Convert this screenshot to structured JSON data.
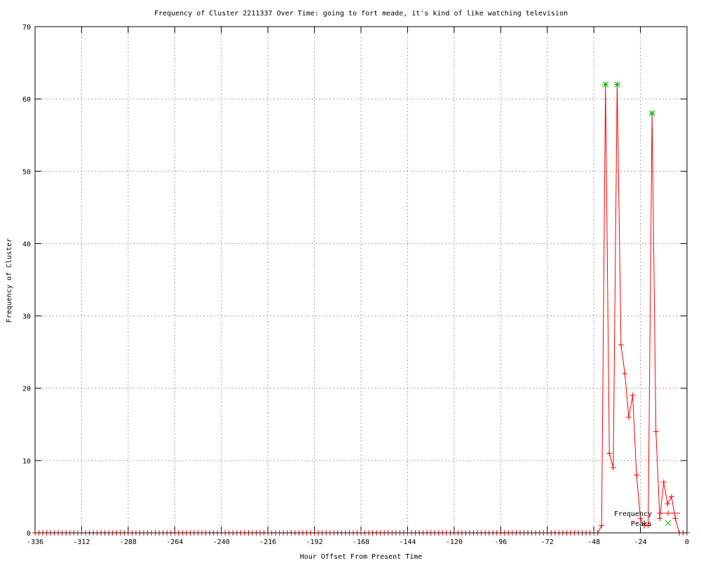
{
  "chart_data": {
    "type": "line",
    "title": "Frequency of Cluster 2211337 Over Time: going to fort meade, it's kind of like watching television",
    "xlabel": "Hour Offset From Present Time",
    "ylabel": "Frequency of Cluster",
    "xlim": [
      -336,
      0
    ],
    "ylim": [
      0,
      70
    ],
    "xticks": [
      -336,
      -312,
      -288,
      -264,
      -240,
      -216,
      -192,
      -168,
      -144,
      -120,
      -96,
      -72,
      -48,
      -24,
      0
    ],
    "yticks": [
      0,
      10,
      20,
      30,
      40,
      50,
      60,
      70
    ],
    "grid": true,
    "legend_placement": "bottom-right",
    "series": [
      {
        "name": "Frequency",
        "color": "#ff0000",
        "marker": "plus",
        "zero_from": -336,
        "zero_to": -46,
        "step": 2,
        "x": [
          -44,
          -42,
          -40,
          -38,
          -36,
          -34,
          -32,
          -30,
          -28,
          -26,
          -24,
          -22,
          -20,
          -18,
          -16,
          -14,
          -12,
          -10,
          -8,
          -6,
          -4,
          -2,
          0
        ],
        "y": [
          1,
          62,
          11,
          9,
          62,
          26,
          22,
          16,
          19,
          8,
          2,
          1,
          1,
          58,
          14,
          2,
          7,
          4,
          5,
          2,
          0,
          0,
          0
        ]
      },
      {
        "name": "Peaks",
        "color": "#00c000",
        "marker": "x",
        "x": [
          -42,
          -36,
          -18
        ],
        "y": [
          62,
          62,
          58
        ]
      }
    ]
  }
}
